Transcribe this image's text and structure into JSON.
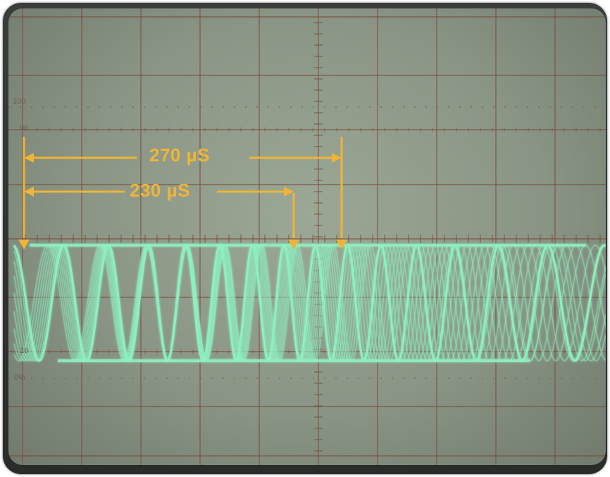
{
  "scale": {
    "label_100": "100",
    "label_90": "90",
    "label_10": "10",
    "label_0": "0%"
  },
  "annotations": {
    "measure_1": "270 µS",
    "measure_2": "230 µS"
  },
  "colors": {
    "trace": "#8ef0c0",
    "graticule": "#7a4a3a",
    "annotation": "#f0b436",
    "screen": "#8f9a8a"
  }
}
